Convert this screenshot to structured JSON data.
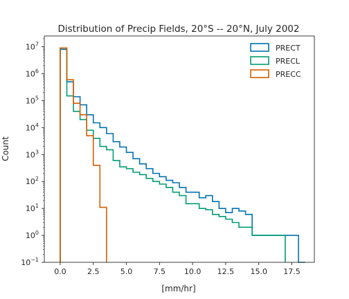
{
  "chart_data": {
    "type": "step-histogram",
    "title": "Distribution of Precip Fields, 20°S -- 20°N, July 2002",
    "xlabel": "[mm/hr]",
    "ylabel": "Count",
    "xlim": [
      -1.2,
      19.2
    ],
    "ylim_log10": [
      -1,
      7.4
    ],
    "yscale": "log",
    "bin_width": 0.5,
    "x_ticks": [
      0,
      2.5,
      5,
      7.5,
      10,
      12.5,
      15,
      17.5
    ],
    "x_tick_labels": [
      "0.0",
      "2.5",
      "5.0",
      "7.5",
      "10.0",
      "12.5",
      "15.0",
      "17.5"
    ],
    "y_ticks_log10": [
      -1,
      0,
      1,
      2,
      3,
      4,
      5,
      6,
      7
    ],
    "y_tick_labels": [
      {
        "base": "10",
        "exp": "−1"
      },
      {
        "base": "10",
        "exp": "0"
      },
      {
        "base": "10",
        "exp": "1"
      },
      {
        "base": "10",
        "exp": "2"
      },
      {
        "base": "10",
        "exp": "3"
      },
      {
        "base": "10",
        "exp": "4"
      },
      {
        "base": "10",
        "exp": "5"
      },
      {
        "base": "10",
        "exp": "6"
      },
      {
        "base": "10",
        "exp": "7"
      }
    ],
    "legend_position": "top-right",
    "series": [
      {
        "name": "PRECT",
        "color": "#0072b2",
        "edges": [
          0,
          0.5,
          1.0,
          1.5,
          2.0,
          2.5,
          3.0,
          3.5,
          4.0,
          4.5,
          5.0,
          5.5,
          6.0,
          6.5,
          7.0,
          7.5,
          8.0,
          8.5,
          9.0,
          9.5,
          10.0,
          10.5,
          11.0,
          11.5,
          12.0,
          12.5,
          13.0,
          13.5,
          14.0,
          14.5,
          15.0,
          15.5,
          16.0,
          16.5,
          17.0,
          17.5,
          18.0,
          18.5
        ],
        "values": [
          8000000,
          500000,
          140000,
          70000,
          30000,
          15000,
          10000,
          6000,
          3000,
          1900,
          1200,
          700,
          450,
          300,
          200,
          150,
          110,
          90,
          60,
          40,
          40,
          25,
          30,
          18,
          10,
          7,
          10,
          8,
          6,
          1,
          1,
          1,
          1,
          1,
          1,
          1,
          0.1
        ]
      },
      {
        "name": "PRECL",
        "color": "#009e73",
        "edges": [
          0,
          0.5,
          1.0,
          1.5,
          2.0,
          2.5,
          3.0,
          3.5,
          4.0,
          4.5,
          5.0,
          5.5,
          6.0,
          6.5,
          7.0,
          7.5,
          8.0,
          8.5,
          9.0,
          9.5,
          10.0,
          10.5,
          11.0,
          11.5,
          12.0,
          12.5,
          13.0,
          13.5,
          14.0,
          14.5,
          15.0,
          15.5,
          16.0,
          16.5,
          17.0
        ],
        "values": [
          9000000,
          150000,
          40000,
          20000,
          8000,
          4000,
          2000,
          1500,
          600,
          350,
          300,
          220,
          180,
          130,
          100,
          80,
          60,
          40,
          30,
          15,
          15,
          10,
          9,
          6,
          5,
          4,
          3,
          2,
          2,
          1,
          1,
          1,
          1,
          1
        ]
      },
      {
        "name": "PRECC",
        "color": "#d55e00",
        "edges": [
          0,
          0.5,
          1.0,
          1.5,
          2.0,
          2.5,
          3.0,
          3.5
        ],
        "values": [
          9000000,
          600000,
          80000,
          30000,
          5000,
          400,
          11
        ]
      }
    ]
  }
}
